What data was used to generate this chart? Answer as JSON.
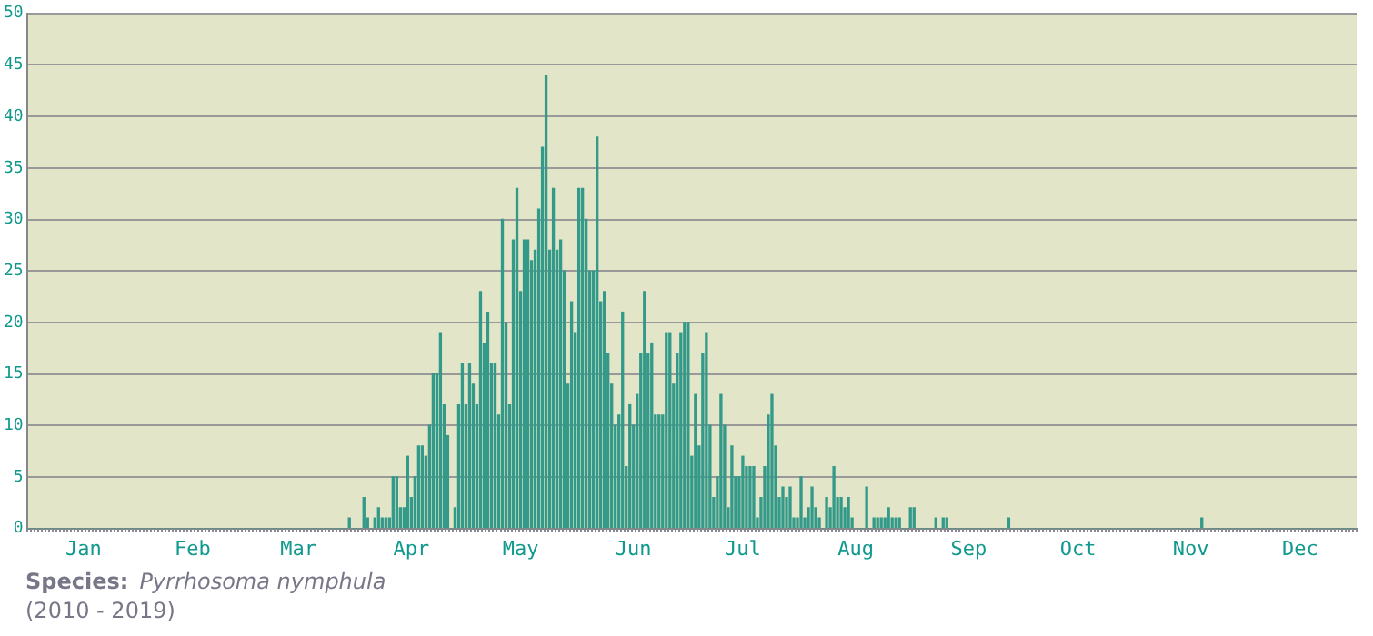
{
  "chart_data": {
    "type": "bar",
    "categories": [
      null,
      null,
      null,
      null,
      null,
      null,
      null,
      null,
      null,
      null,
      null,
      null,
      null,
      null,
      null,
      "Jan",
      null,
      null,
      null,
      null,
      null,
      null,
      null,
      null,
      null,
      null,
      null,
      null,
      null,
      null,
      null,
      null,
      null,
      null,
      null,
      null,
      null,
      null,
      null,
      null,
      null,
      null,
      null,
      null,
      null,
      "Feb",
      null,
      null,
      null,
      null,
      null,
      null,
      null,
      null,
      null,
      null,
      null,
      null,
      null,
      null,
      null,
      null,
      null,
      null,
      null,
      null,
      null,
      null,
      null,
      null,
      null,
      null,
      null,
      null,
      "Mar",
      null,
      null,
      null,
      null,
      null,
      null,
      null,
      null,
      null,
      null,
      null,
      null,
      null,
      null,
      null,
      null,
      null,
      null,
      null,
      null,
      null,
      null,
      null,
      null,
      null,
      null,
      null,
      null,
      null,
      null,
      "Apr",
      null,
      null,
      null,
      null,
      null,
      null,
      null,
      null,
      null,
      null,
      null,
      null,
      null,
      null,
      null,
      null,
      null,
      null,
      null,
      null,
      null,
      null,
      null,
      null,
      null,
      null,
      null,
      null,
      null,
      "May",
      null,
      null,
      null,
      null,
      null,
      null,
      null,
      null,
      null,
      null,
      null,
      null,
      null,
      null,
      null,
      null,
      null,
      null,
      null,
      null,
      null,
      null,
      null,
      null,
      null,
      null,
      null,
      null,
      null,
      null,
      "Jun",
      null,
      null,
      null,
      null,
      null,
      null,
      null,
      null,
      null,
      null,
      null,
      null,
      null,
      null,
      null,
      null,
      null,
      null,
      null,
      null,
      null,
      null,
      null,
      null,
      null,
      null,
      null,
      null,
      null,
      "Jul",
      null,
      null,
      null,
      null,
      null,
      null,
      null,
      null,
      null,
      null,
      null,
      null,
      null,
      null,
      null,
      null,
      null,
      null,
      null,
      null,
      null,
      null,
      null,
      null,
      null,
      null,
      null,
      null,
      null,
      null,
      "Aug",
      null,
      null,
      null,
      null,
      null,
      null,
      null,
      null,
      null,
      null,
      null,
      null,
      null,
      null,
      null,
      null,
      null,
      null,
      null,
      null,
      null,
      null,
      null,
      null,
      null,
      null,
      null,
      null,
      null,
      null,
      "Sep",
      null,
      null,
      null,
      null,
      null,
      null,
      null,
      null,
      null,
      null,
      null,
      null,
      null,
      null,
      null,
      null,
      null,
      null,
      null,
      null,
      null,
      null,
      null,
      null,
      null,
      null,
      null,
      null,
      null,
      "Oct",
      null,
      null,
      null,
      null,
      null,
      null,
      null,
      null,
      null,
      null,
      null,
      null,
      null,
      null,
      null,
      null,
      null,
      null,
      null,
      null,
      null,
      null,
      null,
      null,
      null,
      null,
      null,
      null,
      null,
      null,
      "Nov",
      null,
      null,
      null,
      null,
      null,
      null,
      null,
      null,
      null,
      null,
      null,
      null,
      null,
      null,
      null,
      null,
      null,
      null,
      null,
      null,
      null,
      null,
      null,
      null,
      null,
      null,
      null,
      null,
      null,
      "Dec",
      null,
      null,
      null,
      null,
      null,
      null,
      null,
      null,
      null,
      null,
      null,
      null,
      null,
      null,
      null
    ],
    "values": [
      0,
      0,
      0,
      0,
      0,
      0,
      0,
      0,
      0,
      0,
      0,
      0,
      0,
      0,
      0,
      0,
      0,
      0,
      0,
      0,
      0,
      0,
      0,
      0,
      0,
      0,
      0,
      0,
      0,
      0,
      0,
      0,
      0,
      0,
      0,
      0,
      0,
      0,
      0,
      0,
      0,
      0,
      0,
      0,
      0,
      0,
      0,
      0,
      0,
      0,
      0,
      0,
      0,
      0,
      0,
      0,
      0,
      0,
      0,
      0,
      0,
      0,
      0,
      0,
      0,
      0,
      0,
      0,
      0,
      0,
      0,
      0,
      0,
      0,
      0,
      0,
      0,
      0,
      0,
      0,
      0,
      0,
      0,
      0,
      0,
      0,
      0,
      0,
      1,
      0,
      0,
      0,
      3,
      1,
      0,
      1,
      2,
      1,
      1,
      1,
      5,
      5,
      2,
      2,
      7,
      3,
      5,
      8,
      8,
      7,
      10,
      15,
      15,
      19,
      12,
      9,
      0,
      2,
      12,
      16,
      12,
      16,
      14,
      12,
      23,
      18,
      21,
      16,
      16,
      11,
      30,
      20,
      12,
      28,
      33,
      23,
      28,
      28,
      26,
      27,
      31,
      37,
      44,
      27,
      33,
      27,
      28,
      25,
      14,
      22,
      19,
      33,
      33,
      30,
      25,
      25,
      38,
      22,
      23,
      17,
      14,
      10,
      11,
      21,
      6,
      12,
      10,
      13,
      17,
      23,
      17,
      18,
      11,
      11,
      11,
      19,
      19,
      14,
      17,
      19,
      20,
      20,
      7,
      13,
      8,
      17,
      19,
      10,
      3,
      5,
      13,
      10,
      2,
      8,
      5,
      5,
      7,
      6,
      6,
      6,
      1,
      3,
      6,
      11,
      13,
      8,
      3,
      4,
      3,
      4,
      1,
      1,
      5,
      1,
      2,
      4,
      2,
      1,
      0,
      3,
      2,
      6,
      3,
      3,
      2,
      3,
      1,
      0,
      0,
      0,
      4,
      0,
      1,
      1,
      1,
      1,
      2,
      1,
      1,
      1,
      0,
      0,
      2,
      2,
      0,
      0,
      0,
      0,
      0,
      1,
      0,
      1,
      1,
      0,
      0,
      0,
      0,
      0,
      0,
      0,
      0,
      0,
      0,
      0,
      0,
      0,
      0,
      0,
      0,
      1,
      0,
      0,
      0,
      0,
      0,
      0,
      0,
      0,
      0,
      0,
      0,
      0,
      0,
      0,
      0,
      0,
      0,
      0,
      0,
      0,
      0,
      0,
      0,
      0,
      0,
      0,
      0,
      0,
      0,
      0,
      0,
      0,
      0,
      0,
      0,
      0,
      0,
      0,
      0,
      0,
      0,
      0,
      0,
      0,
      0,
      0,
      0,
      0,
      0,
      0,
      0,
      0,
      1,
      0,
      0,
      0,
      0,
      0,
      0,
      0,
      0,
      0,
      0,
      0,
      0,
      0,
      0,
      0,
      0,
      0,
      0,
      0,
      0,
      0,
      0,
      0,
      0,
      0,
      0,
      0,
      0,
      0,
      0,
      0,
      0,
      0,
      0,
      0,
      0,
      0,
      0,
      0,
      0,
      0,
      0
    ],
    "color": "#339988",
    "ylim": [
      0,
      50
    ],
    "yticks": [
      0,
      5,
      10,
      15,
      20,
      25,
      30,
      35,
      40,
      45,
      50
    ],
    "grid": "y",
    "annotations": [
      "Species:",
      "Pyrrhosoma nymphula",
      "(2010 - 2019)"
    ]
  }
}
